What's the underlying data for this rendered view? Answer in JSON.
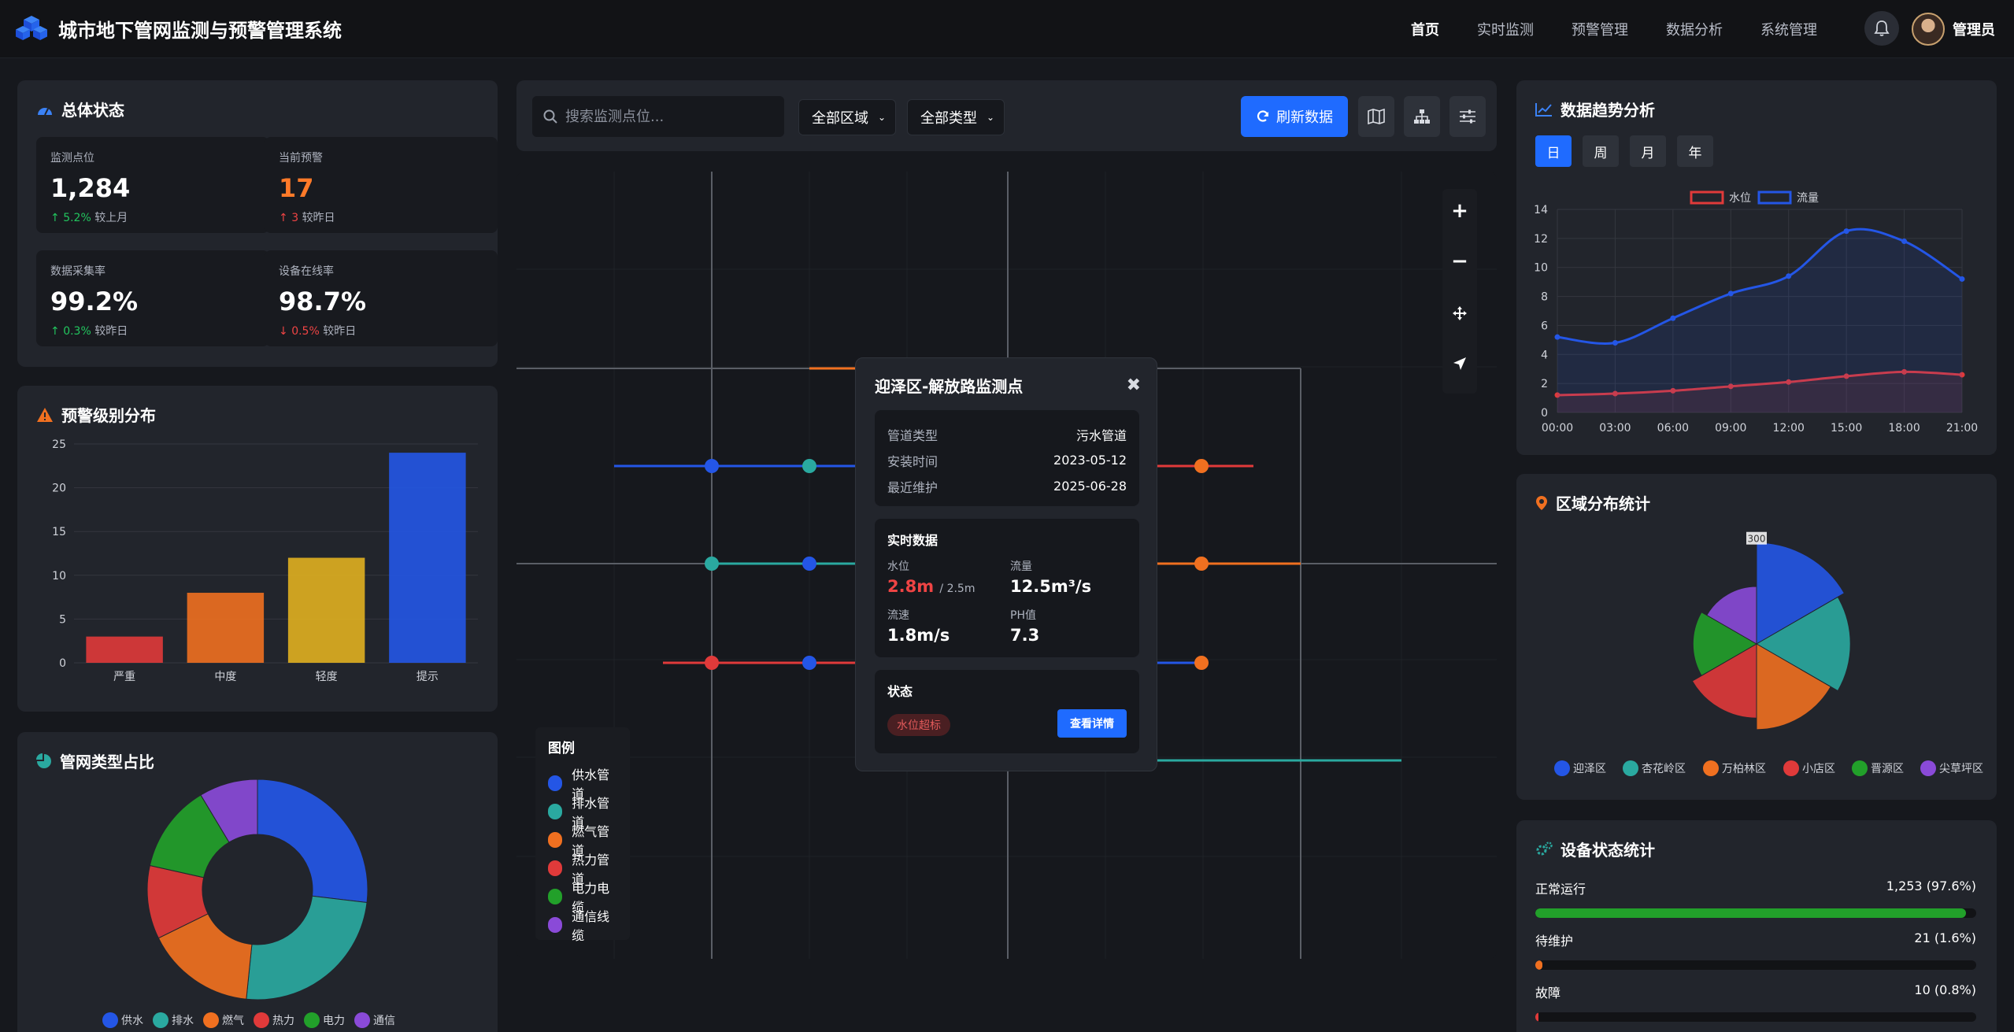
{
  "app": {
    "title": "城市地下管网监测与预警管理系统"
  },
  "nav": {
    "items": [
      "首页",
      "实时监测",
      "预警管理",
      "数据分析",
      "系统管理"
    ],
    "active": 0,
    "user": "管理员"
  },
  "colors": {
    "accent": "#1f6bff",
    "supply": "#2456e6",
    "drain": "#2aa9a0",
    "gas": "#f07020",
    "heat": "#e03a3a",
    "power": "#22a02a",
    "comm": "#8a4ad8"
  },
  "overview": {
    "title": "总体状态",
    "stats": [
      {
        "label": "监测点位",
        "value": "1,284",
        "delta": "5.2%",
        "delta_text": "较上月",
        "dir": "up",
        "tone": "green"
      },
      {
        "label": "当前预警",
        "value": "17",
        "delta": "3",
        "delta_text": "较昨日",
        "dir": "up",
        "tone": "red"
      },
      {
        "label": "数据采集率",
        "value": "99.2%",
        "delta": "0.3%",
        "delta_text": "较昨日",
        "dir": "up",
        "tone": "green"
      },
      {
        "label": "设备在线率",
        "value": "98.7%",
        "delta": "0.5%",
        "delta_text": "较昨日",
        "dir": "down",
        "tone": "red"
      }
    ]
  },
  "alert_dist": {
    "title": "预警级别分布"
  },
  "pipe_types": {
    "title": "管网类型占比"
  },
  "toolbar": {
    "search_placeholder": "搜索监测点位...",
    "region": "全部区域",
    "type": "全部类型",
    "refresh": "刷新数据"
  },
  "legend": {
    "title": "图例",
    "items": [
      {
        "label": "供水管道",
        "color": "#2456e6"
      },
      {
        "label": "排水管道",
        "color": "#2aa9a0"
      },
      {
        "label": "燃气管道",
        "color": "#f07020"
      },
      {
        "label": "热力管道",
        "color": "#e03a3a"
      },
      {
        "label": "电力电缆",
        "color": "#22a02a"
      },
      {
        "label": "通信线缆",
        "color": "#8a4ad8"
      }
    ]
  },
  "popup": {
    "title": "迎泽区-解放路监测点",
    "info": [
      {
        "k": "管道类型",
        "v": "污水管道"
      },
      {
        "k": "安装时间",
        "v": "2023-05-12"
      },
      {
        "k": "最近维护",
        "v": "2025-06-28"
      }
    ],
    "realtime_title": "实时数据",
    "water_label": "水位",
    "water_value": "2.8m",
    "water_limit": "/ 2.5m",
    "flow_label": "流量",
    "flow_value": "12.5m³/s",
    "speed_label": "流速",
    "speed_value": "1.8m/s",
    "ph_label": "PH值",
    "ph_value": "7.3",
    "status_title": "状态",
    "status_tag": "水位超标",
    "detail_button": "查看详情"
  },
  "trend": {
    "title": "数据趋势分析",
    "tabs": [
      "日",
      "周",
      "月",
      "年"
    ],
    "active_tab": 0
  },
  "region": {
    "title": "区域分布统计"
  },
  "device": {
    "title": "设备状态统计",
    "rows": [
      {
        "label": "正常运行",
        "value": "1,253 (97.6%)",
        "pct": 97.6,
        "color": "#22a02a"
      },
      {
        "label": "待维护",
        "value": "21 (1.6%)",
        "pct": 1.6,
        "color": "#f07020"
      },
      {
        "label": "故障",
        "value": "10 (0.8%)",
        "pct": 0.8,
        "color": "#e03a3a"
      }
    ]
  },
  "chart_data": [
    {
      "type": "bar",
      "categories": [
        "严重",
        "中度",
        "轻度",
        "提示"
      ],
      "values": [
        3,
        8,
        12,
        24
      ],
      "colors": [
        "#e03a3a",
        "#f07020",
        "#e0b020",
        "#2456e6"
      ],
      "ylim": [
        0,
        25
      ],
      "yticks": [
        0,
        5,
        10,
        15,
        20,
        25
      ]
    },
    {
      "type": "pie",
      "categories": [
        "供水",
        "排水",
        "燃气",
        "热力",
        "电力",
        "通信"
      ],
      "values": [
        25,
        23,
        15,
        10,
        12,
        8
      ],
      "colors": [
        "#2456e6",
        "#2aa9a0",
        "#f07020",
        "#e03a3a",
        "#22a02a",
        "#8a4ad8"
      ]
    },
    {
      "type": "line",
      "x": [
        "00:00",
        "03:00",
        "06:00",
        "09:00",
        "12:00",
        "15:00",
        "18:00",
        "21:00"
      ],
      "series": [
        {
          "name": "水位",
          "values": [
            1.2,
            1.3,
            1.5,
            1.8,
            2.1,
            2.5,
            2.8,
            2.6
          ],
          "color": "#e03a3a"
        },
        {
          "name": "流量",
          "values": [
            5.2,
            4.8,
            6.5,
            8.2,
            9.4,
            12.5,
            11.8,
            9.2
          ],
          "color": "#2456e6"
        }
      ],
      "ylim": [
        0,
        14
      ],
      "yticks": [
        0,
        2,
        4,
        6,
        8,
        10,
        12,
        14
      ]
    },
    {
      "type": "pie",
      "subtype": "polar-area",
      "categories": [
        "迎泽区",
        "杏花岭区",
        "万柏林区",
        "小店区",
        "晋源区",
        "尖草坪区"
      ],
      "values": [
        280,
        240,
        200,
        150,
        110,
        90
      ],
      "colors": [
        "#2456e6",
        "#2aa9a0",
        "#f07020",
        "#e03a3a",
        "#22a02a",
        "#8a4ad8"
      ],
      "rticks": [
        300
      ]
    }
  ]
}
